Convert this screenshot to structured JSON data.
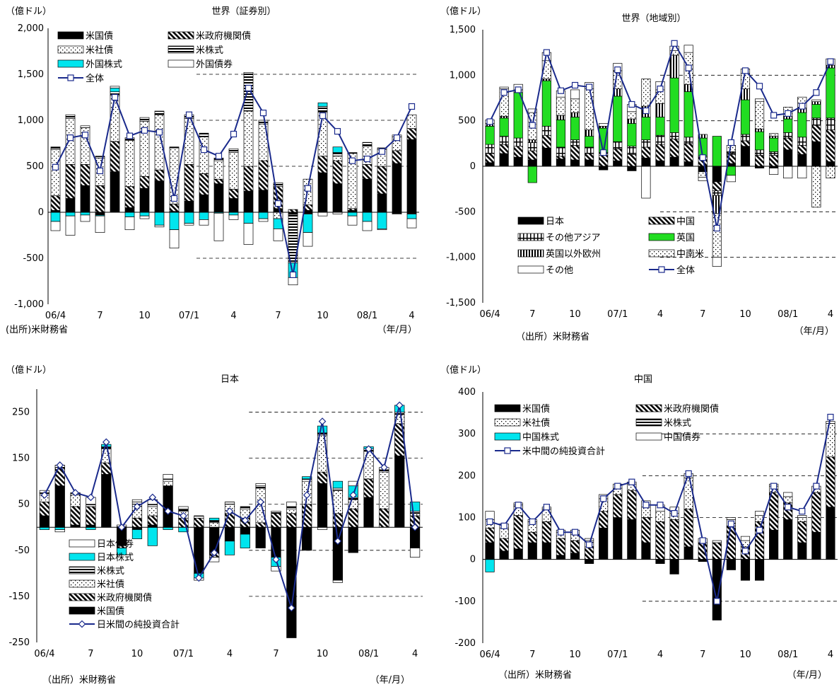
{
  "chart_data": [
    {
      "type": "bar",
      "title": "世界（証券別）",
      "unit_label": "（億ドル）",
      "source": "(出所)米財務省",
      "period_label": "（年/月）",
      "ylim": [
        -1000,
        2000
      ],
      "yticks": [
        "-1,000",
        "-500",
        "0",
        "500",
        "1,000",
        "1,500",
        "2,000"
      ],
      "xtick_labels": [
        "06/4",
        "7",
        "10",
        "07/1",
        "4",
        "7",
        "10",
        "08/1",
        "4"
      ],
      "months": [
        "06/4",
        "06/5",
        "06/6",
        "06/7",
        "06/8",
        "06/9",
        "06/10",
        "06/11",
        "06/12",
        "07/1",
        "07/2",
        "07/3",
        "07/4",
        "07/5",
        "07/6",
        "07/7",
        "07/8",
        "07/9",
        "07/10",
        "07/11",
        "07/12",
        "08/1",
        "08/2",
        "08/3",
        "08/4"
      ],
      "legend": "top-left",
      "series": [
        {
          "name": "米国債",
          "pattern": "black",
          "values": [
            20,
            150,
            290,
            -30,
            440,
            50,
            260,
            340,
            10,
            120,
            190,
            310,
            150,
            230,
            240,
            40,
            -20,
            20,
            430,
            310,
            20,
            360,
            200,
            530,
            790
          ]
        },
        {
          "name": "米政府機関債",
          "pattern": "diag",
          "values": [
            160,
            370,
            230,
            290,
            330,
            230,
            130,
            120,
            80,
            400,
            230,
            50,
            100,
            270,
            320,
            240,
            30,
            60,
            180,
            250,
            20,
            160,
            300,
            140,
            120
          ]
        },
        {
          "name": "米社債",
          "pattern": "dots",
          "values": [
            500,
            500,
            400,
            300,
            500,
            500,
            600,
            600,
            610,
            500,
            400,
            200,
            400,
            600,
            400,
            -70,
            -10,
            280,
            480,
            50,
            600,
            200,
            180,
            150,
            150
          ]
        },
        {
          "name": "米株式",
          "pattern": "hstripe",
          "values": [
            30,
            40,
            20,
            20,
            40,
            30,
            40,
            40,
            10,
            40,
            40,
            30,
            40,
            420,
            40,
            40,
            -520,
            -20,
            60,
            40,
            10,
            40,
            20,
            -20,
            -20
          ]
        },
        {
          "name": "外国株式",
          "pattern": "cyan",
          "values": [
            -100,
            -40,
            -30,
            -10,
            40,
            -50,
            -40,
            -140,
            -190,
            -120,
            -80,
            -10,
            -30,
            -120,
            -70,
            -110,
            -160,
            -200,
            40,
            60,
            -40,
            -100,
            -180,
            0,
            -50
          ]
        },
        {
          "name": "外国債券",
          "pattern": "white",
          "values": [
            -100,
            -210,
            -70,
            -180,
            20,
            -140,
            -30,
            -20,
            -200,
            -20,
            -60,
            -300,
            -50,
            -230,
            -30,
            -130,
            -80,
            -150,
            -40,
            -20,
            -100,
            -100,
            -10,
            20,
            -100
          ]
        }
      ],
      "total": {
        "name": "全体",
        "values": [
          490,
          810,
          840,
          450,
          1250,
          830,
          890,
          870,
          150,
          1060,
          680,
          610,
          850,
          1350,
          1080,
          95,
          -680,
          260,
          1050,
          880,
          560,
          580,
          660,
          810,
          1150
        ]
      }
    },
    {
      "type": "bar",
      "title": "世界（地域別）",
      "unit_label": "（億ドル）",
      "source": "（出所）米財務省",
      "period_label": "（年/月）",
      "ylim": [
        -1500,
        1500
      ],
      "yticks": [
        "-1,500",
        "-1,000",
        "-500",
        "0",
        "500",
        "1,000",
        "1,500"
      ],
      "xtick_labels": [
        "06/4",
        "7",
        "10",
        "07/1",
        "4",
        "7",
        "10",
        "08/1",
        "4"
      ],
      "legend": "bottom-left",
      "series": [
        {
          "name": "日本",
          "pattern": "black",
          "values": [
            40,
            140,
            100,
            70,
            200,
            80,
            70,
            70,
            -40,
            60,
            -50,
            90,
            60,
            100,
            50,
            -60,
            -170,
            30,
            220,
            -20,
            -20,
            180,
            130,
            270,
            50
          ]
        },
        {
          "name": "中国",
          "pattern": "diag",
          "values": [
            100,
            100,
            120,
            100,
            140,
            30,
            160,
            70,
            120,
            130,
            130,
            120,
            180,
            200,
            200,
            100,
            -100,
            100,
            60,
            120,
            120,
            130,
            100,
            180,
            350
          ]
        },
        {
          "name": "その他アジア",
          "pattern": "vstripe",
          "values": [
            100,
            90,
            90,
            90,
            100,
            100,
            60,
            70,
            30,
            80,
            90,
            80,
            100,
            70,
            70,
            10,
            -50,
            20,
            70,
            60,
            40,
            60,
            90,
            80,
            130
          ]
        },
        {
          "name": "英国",
          "pattern": "green",
          "values": [
            200,
            200,
            500,
            -180,
            500,
            300,
            250,
            120,
            270,
            500,
            250,
            250,
            200,
            600,
            500,
            200,
            330,
            -100,
            380,
            200,
            150,
            150,
            270,
            150,
            550
          ]
        },
        {
          "name": "英国以外欧州",
          "pattern": "vstripe2",
          "values": [
            30,
            20,
            30,
            30,
            20,
            50,
            50,
            70,
            20,
            80,
            50,
            120,
            150,
            250,
            80,
            40,
            -200,
            10,
            120,
            30,
            20,
            30,
            50,
            30,
            30
          ]
        },
        {
          "name": "中南米",
          "pattern": "dots",
          "values": [
            0,
            300,
            0,
            300,
            200,
            200,
            150,
            450,
            0,
            200,
            80,
            300,
            150,
            50,
            350,
            -60,
            -480,
            70,
            170,
            300,
            30,
            100,
            120,
            -450,
            -130
          ]
        },
        {
          "name": "その他",
          "pattern": "white",
          "values": [
            40,
            20,
            60,
            40,
            90,
            70,
            100,
            70,
            30,
            80,
            80,
            -350,
            90,
            50,
            80,
            -40,
            -100,
            -70,
            50,
            30,
            -70,
            -130,
            -130,
            20,
            70
          ]
        }
      ],
      "total": {
        "name": "全体",
        "values": [
          490,
          810,
          840,
          450,
          1250,
          830,
          890,
          870,
          150,
          1060,
          680,
          610,
          850,
          1350,
          1080,
          95,
          -680,
          260,
          1050,
          880,
          560,
          580,
          660,
          810,
          1150
        ]
      }
    },
    {
      "type": "bar",
      "title": "日本",
      "unit_label": "（億ドル）",
      "source": "（出所）米財務省",
      "period_label": "（年/月）",
      "ylim": [
        -250,
        300
      ],
      "yticks": [
        "-250",
        "-150",
        "-50",
        "50",
        "150",
        "250"
      ],
      "xtick_labels": [
        "06/4",
        "7",
        "10",
        "07/1",
        "4",
        "7",
        "10",
        "08/1",
        "4"
      ],
      "legend": "bottom-left",
      "series": [
        {
          "name": "米国債",
          "pattern": "black",
          "values": [
            25,
            90,
            5,
            5,
            115,
            -40,
            -5,
            5,
            90,
            0,
            -100,
            -55,
            -30,
            -15,
            -45,
            -65,
            -240,
            -50,
            95,
            -115,
            -55,
            65,
            0,
            155,
            -45
          ]
        },
        {
          "name": "米政府機関債",
          "pattern": "diag",
          "values": [
            30,
            40,
            40,
            40,
            25,
            -5,
            20,
            20,
            0,
            20,
            20,
            -10,
            30,
            20,
            10,
            30,
            30,
            50,
            25,
            30,
            40,
            40,
            40,
            70,
            25
          ]
        },
        {
          "name": "米社債",
          "pattern": "dots",
          "values": [
            15,
            0,
            25,
            0,
            30,
            0,
            30,
            20,
            10,
            15,
            0,
            10,
            20,
            20,
            75,
            0,
            10,
            50,
            80,
            50,
            20,
            60,
            80,
            20,
            5
          ]
        },
        {
          "name": "米株式",
          "pattern": "hstripe",
          "values": [
            5,
            5,
            5,
            5,
            5,
            5,
            5,
            5,
            5,
            5,
            5,
            5,
            5,
            5,
            5,
            5,
            5,
            5,
            5,
            5,
            5,
            5,
            5,
            5,
            5
          ]
        },
        {
          "name": "日本株式",
          "pattern": "cyan",
          "values": [
            -5,
            -5,
            0,
            -5,
            5,
            -15,
            -20,
            -40,
            -5,
            -10,
            -10,
            5,
            -30,
            -30,
            0,
            -20,
            0,
            5,
            15,
            15,
            25,
            5,
            0,
            15,
            20
          ]
        },
        {
          "name": "日本債券",
          "pattern": "white",
          "values": [
            5,
            -5,
            0,
            15,
            0,
            0,
            5,
            10,
            10,
            5,
            -5,
            -10,
            0,
            0,
            5,
            -10,
            10,
            0,
            -5,
            -5,
            10,
            0,
            5,
            0,
            -20
          ]
        }
      ],
      "total": {
        "name": "日米間の純投資合計",
        "values": [
          70,
          135,
          75,
          65,
          185,
          0,
          45,
          65,
          35,
          25,
          -110,
          -55,
          35,
          15,
          55,
          -70,
          -175,
          70,
          230,
          -30,
          70,
          170,
          130,
          265,
          0
        ]
      }
    },
    {
      "type": "bar",
      "title": "中国",
      "unit_label": "（億ドル）",
      "source": "（出所）米財務省",
      "period_label": "（年/月）",
      "ylim": [
        -200,
        400
      ],
      "yticks": [
        "-200",
        "-100",
        "0",
        "100",
        "200",
        "300",
        "400"
      ],
      "xtick_labels": [
        "06/4",
        "7",
        "10",
        "07/1",
        "4",
        "7",
        "10",
        "08/1",
        "4"
      ],
      "legend": "top-left",
      "series": [
        {
          "name": "米国債",
          "pattern": "black",
          "values": [
            40,
            20,
            25,
            40,
            40,
            10,
            15,
            -10,
            75,
            100,
            95,
            40,
            -10,
            -35,
            30,
            -5,
            -145,
            -25,
            -50,
            -50,
            70,
            95,
            40,
            65,
            125
          ]
        },
        {
          "name": "米政府機関債",
          "pattern": "diag",
          "values": [
            35,
            30,
            80,
            25,
            50,
            40,
            30,
            30,
            40,
            55,
            70,
            60,
            90,
            95,
            90,
            40,
            40,
            80,
            30,
            90,
            90,
            40,
            50,
            95,
            120
          ]
        },
        {
          "name": "米社債",
          "pattern": "dots",
          "values": [
            20,
            25,
            25,
            25,
            30,
            15,
            15,
            15,
            30,
            15,
            15,
            25,
            25,
            15,
            75,
            0,
            0,
            15,
            15,
            15,
            15,
            15,
            10,
            15,
            80
          ]
        },
        {
          "name": "米株式",
          "pattern": "hstripe",
          "values": [
            0,
            0,
            0,
            0,
            0,
            0,
            0,
            0,
            0,
            0,
            0,
            0,
            0,
            0,
            0,
            0,
            0,
            0,
            0,
            0,
            0,
            0,
            0,
            0,
            0
          ]
        },
        {
          "name": "中国株式",
          "pattern": "cyan",
          "values": [
            -30,
            0,
            0,
            0,
            0,
            0,
            0,
            0,
            0,
            0,
            0,
            0,
            0,
            0,
            0,
            0,
            0,
            0,
            0,
            0,
            0,
            0,
            0,
            0,
            0
          ]
        },
        {
          "name": "中国債券",
          "pattern": "white",
          "values": [
            20,
            10,
            5,
            5,
            5,
            5,
            10,
            5,
            10,
            10,
            5,
            15,
            15,
            15,
            10,
            10,
            5,
            5,
            10,
            10,
            5,
            10,
            5,
            0,
            5
          ]
        }
      ],
      "total": {
        "name": "米中間の純投資合計",
        "values": [
          90,
          80,
          130,
          90,
          125,
          65,
          65,
          35,
          145,
          175,
          185,
          130,
          130,
          110,
          205,
          45,
          -100,
          85,
          20,
          70,
          175,
          125,
          115,
          175,
          340
        ]
      }
    }
  ]
}
